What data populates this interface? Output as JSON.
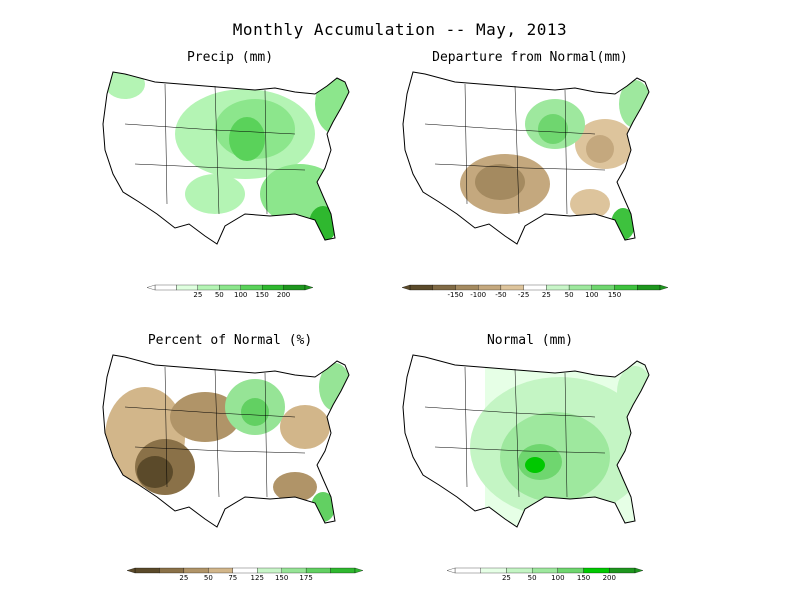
{
  "title": "Monthly Accumulation -- May, 2013",
  "panels": [
    {
      "title": "Precip (mm)",
      "legend": {
        "colors": [
          "#ffffff",
          "#dfffdf",
          "#b4f4b4",
          "#8ce68c",
          "#5ad25a",
          "#2fb82f",
          "#1e961e"
        ],
        "labels": [
          "25",
          "50",
          "100",
          "150",
          "200"
        ]
      }
    },
    {
      "title": "Departure from Normal(mm)",
      "legend": {
        "colors": [
          "#5b4a2a",
          "#806a45",
          "#a48a60",
          "#c4a87e",
          "#ddc49c",
          "#ffffff",
          "#c8f5c8",
          "#9ee89e",
          "#6fd66f",
          "#3ec23e",
          "#1e961e"
        ],
        "labels": [
          "-150",
          "-100",
          "-50",
          "-25",
          "25",
          "50",
          "100",
          "150"
        ]
      }
    },
    {
      "title": "Percent of Normal (%)",
      "legend": {
        "colors": [
          "#5b4a2a",
          "#8a7148",
          "#b09468",
          "#d2b68a",
          "#ffffff",
          "#c8f5c8",
          "#96e496",
          "#62d062",
          "#2fb82f"
        ],
        "labels": [
          "25",
          "50",
          "75",
          "125",
          "150",
          "175"
        ]
      }
    },
    {
      "title": "Normal (mm)",
      "legend": {
        "colors": [
          "#ffffff",
          "#e6ffe6",
          "#c4f5c4",
          "#9ee89e",
          "#6fd66f",
          "#00c800",
          "#1e961e"
        ],
        "labels": [
          "25",
          "50",
          "100",
          "150",
          "200"
        ]
      }
    }
  ]
}
